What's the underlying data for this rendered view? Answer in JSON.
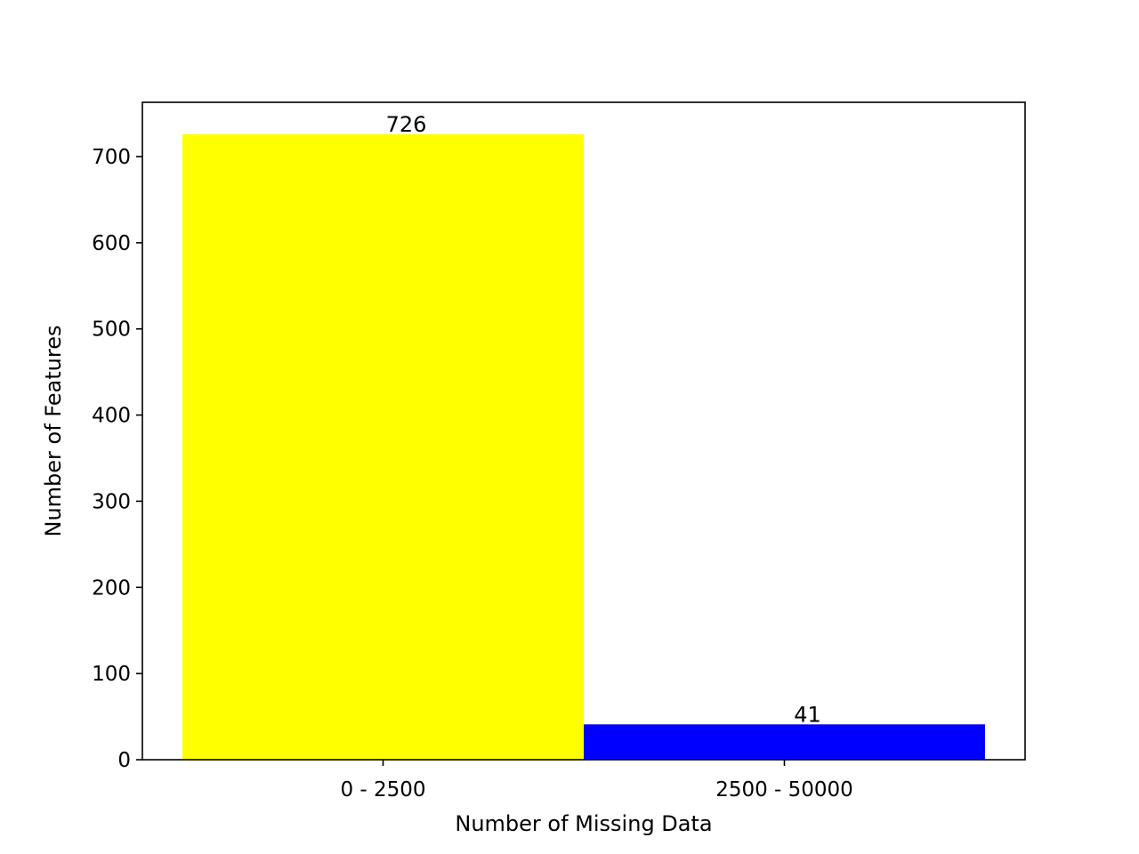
{
  "chart_data": {
    "type": "bar",
    "title": "",
    "xlabel": "Number of Missing Data",
    "ylabel": "Number of Features",
    "categories": [
      "0 - 2500",
      "2500 - 50000"
    ],
    "values": [
      726,
      41
    ],
    "data_labels": [
      "726",
      "41"
    ],
    "bar_colors": [
      "#ffff00",
      "#0000ff"
    ],
    "ylim": [
      0,
      763
    ],
    "yticks": [
      0,
      100,
      200,
      300,
      400,
      500,
      600,
      700
    ],
    "ytick_labels": [
      "0",
      "100",
      "200",
      "300",
      "400",
      "500",
      "600",
      "700"
    ],
    "grid": false,
    "legend": "none"
  }
}
